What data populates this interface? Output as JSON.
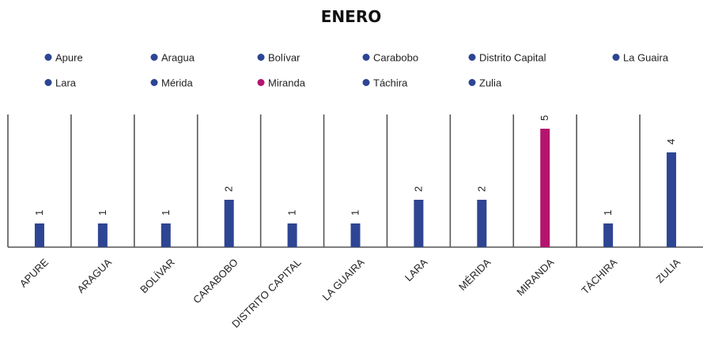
{
  "chart_data": {
    "type": "bar",
    "title": "ENERO",
    "categories": [
      "APURE",
      "ARAGUA",
      "BOLÍVAR",
      "CARABOBO",
      "DISTRITO CAPITAL",
      "LA GUAIRA",
      "LARA",
      "MÉRIDA",
      "MIRANDA",
      "TÁCHIRA",
      "ZULIA"
    ],
    "values": [
      1,
      1,
      1,
      2,
      1,
      1,
      2,
      2,
      5,
      1,
      4
    ],
    "legend": [
      "Apure",
      "Aragua",
      "Bolívar",
      "Carabobo",
      "Distrito Capital",
      "La Guaira",
      "Lara",
      "Mérida",
      "Miranda",
      "Táchira",
      "Zulia"
    ],
    "colors": [
      "#2e4593",
      "#2e4593",
      "#2e4593",
      "#2e4593",
      "#2e4593",
      "#2e4593",
      "#2e4593",
      "#2e4593",
      "#b5146e",
      "#2e4593",
      "#2e4593"
    ],
    "legend_position": "top",
    "xlabel": "",
    "ylabel": "",
    "ylim": [
      0,
      5.6
    ],
    "grid": false
  }
}
